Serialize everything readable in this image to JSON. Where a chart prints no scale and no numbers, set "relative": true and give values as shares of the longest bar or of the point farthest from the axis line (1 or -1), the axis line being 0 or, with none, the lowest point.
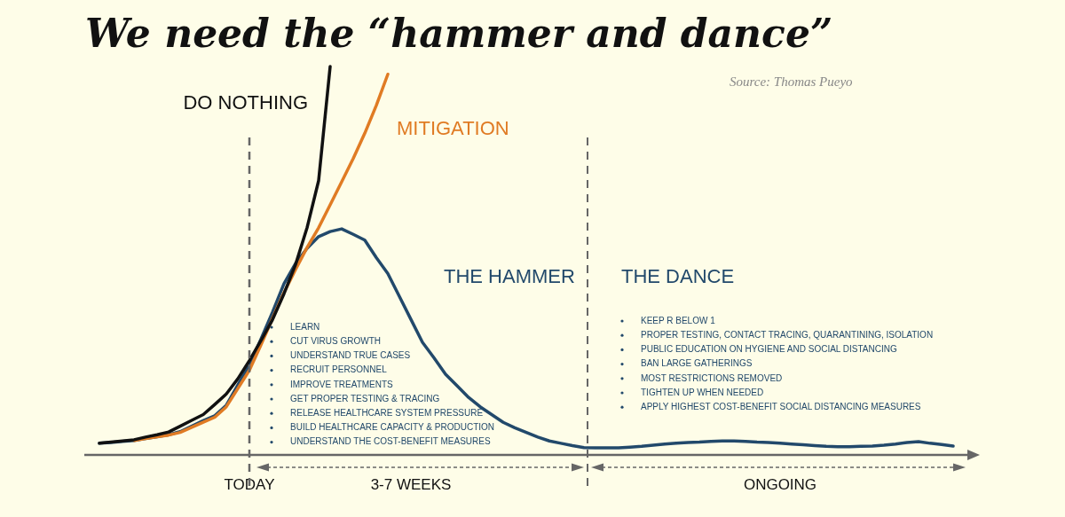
{
  "chart_data": {
    "type": "line",
    "title": "We need the “hammer and dance”",
    "relative": true,
    "tick_labels": "x",
    "legend": false,
    "categories": [
      null,
      null,
      null,
      null,
      null,
      null,
      null,
      null,
      null,
      null,
      null,
      null,
      null,
      "TODAY",
      null,
      null,
      null,
      null,
      null,
      null,
      null,
      null,
      null,
      null,
      null,
      null,
      null,
      "3-7 WEEKS",
      null,
      null,
      null,
      null,
      null,
      null,
      null,
      null,
      null,
      null,
      null,
      null,
      null,
      null,
      null,
      null,
      null,
      null,
      null,
      null,
      null,
      null,
      null,
      null,
      null,
      null,
      null,
      null,
      null,
      null,
      null,
      "ONGOING",
      null,
      null,
      null,
      null,
      null,
      null,
      null,
      null,
      null,
      null,
      null,
      null,
      null,
      null,
      null
    ],
    "series": [
      {
        "name": "DO NOTHING",
        "color": "#111111",
        "values": [
          0.03,
          0.033,
          0.036,
          0.039,
          0.046,
          0.052,
          0.059,
          0.074,
          0.089,
          0.104,
          0.13,
          0.157,
          0.196,
          0.243,
          0.294,
          0.348,
          0.415,
          0.49,
          0.585,
          0.706,
          1,
          null,
          null,
          null,
          null,
          null,
          null,
          null,
          null,
          null,
          null,
          null,
          null,
          null,
          null,
          null,
          null,
          null,
          null,
          null,
          null,
          null,
          null,
          null,
          null,
          null,
          null,
          null,
          null,
          null,
          null,
          null,
          null,
          null,
          null,
          null,
          null,
          null,
          null,
          null,
          null,
          null,
          null,
          null,
          null,
          null,
          null,
          null,
          null,
          null,
          null,
          null,
          null,
          null,
          null
        ]
      },
      {
        "name": "MITIGATION",
        "color": "#e07b24",
        "values": [
          null,
          null,
          null,
          0.037,
          0.042,
          0.047,
          0.051,
          0.058,
          0.071,
          0.084,
          0.097,
          0.124,
          0.171,
          0.218,
          0.283,
          0.351,
          0.418,
          0.477,
          0.534,
          0.585,
          0.644,
          0.703,
          0.763,
          0.828,
          0.9,
          0.98,
          null,
          null,
          null,
          null,
          null,
          null,
          null,
          null,
          null,
          null,
          null,
          null,
          null,
          null,
          null,
          null,
          null,
          null,
          null,
          null,
          null,
          null,
          null,
          null,
          null,
          null,
          null,
          null,
          null,
          null,
          null,
          null,
          null,
          null,
          null,
          null,
          null,
          null,
          null,
          null,
          null,
          null,
          null,
          null,
          null,
          null,
          null,
          null,
          null
        ]
      },
      {
        "color": "#22496b",
        "values": [
          0.03,
          0.032,
          0.035,
          0.037,
          0.042,
          0.047,
          0.052,
          0.06,
          0.074,
          0.088,
          0.101,
          0.128,
          0.18,
          0.232,
          0.298,
          0.367,
          0.441,
          0.493,
          0.532,
          0.562,
          0.575,
          0.582,
          0.568,
          0.553,
          0.508,
          0.467,
          0.408,
          0.349,
          0.29,
          0.25,
          0.208,
          0.178,
          0.148,
          0.124,
          0.104,
          0.084,
          0.07,
          0.058,
          0.046,
          0.036,
          0.03,
          0.024,
          0.019,
          0.018,
          0.018,
          0.018,
          0.02,
          0.022,
          0.025,
          0.028,
          0.03,
          0.032,
          0.033,
          0.035,
          0.036,
          0.036,
          0.035,
          0.033,
          0.032,
          0.03,
          0.028,
          0.026,
          0.024,
          0.022,
          0.021,
          0.021,
          0.022,
          0.023,
          0.025,
          0.028,
          0.032,
          0.034,
          0.03,
          0.027,
          0.023
        ]
      }
    ],
    "ref_lines": [
      {
        "axis": "x",
        "value": "TODAY",
        "color": "#666666",
        "line_style": "dashed"
      }
    ],
    "annotations": [
      "Source: Thomas Pueyo",
      "THE HAMMER",
      "THE DANCE",
      "LEARN\nCUT VIRUS GROWTH\nUNDERSTAND TRUE CASES\nRECRUIT PERSONNEL\nIMPROVE TREATMENTS\nGET PROPER TESTING & TRACING\nRELEASE HEALTHCARE SYSTEM PRESSURE\nBUILD HEALTHCARE CAPACITY & PRODUCTION\nUNDERSTAND THE COST-BENEFIT MEASURES",
      "KEEP R BELOW 1\nPROPER TESTING, CONTACT TRACING, QUARANTINING, ISOLATION\nPUBLIC EDUCATION ON HYGIENE AND SOCIAL DISTANCING\nBAN LARGE GATHERINGS\nMOST RESTRICTIONS REMOVED\nTIGHTEN UP WHEN NEEDED\nAPPLY HIGHEST COST-BENEFIT SOCIAL DISTANCING MEASURES"
    ]
  }
}
